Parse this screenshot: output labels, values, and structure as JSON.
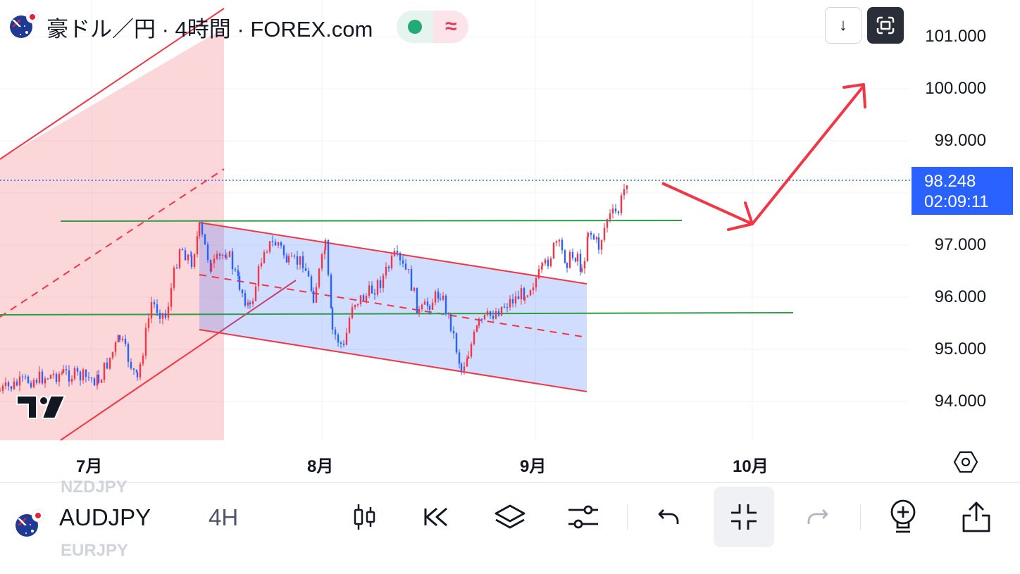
{
  "header": {
    "title": "豪ドル／円 · 4時間 · FOREX.com",
    "status_symbol": "≈"
  },
  "top_buttons": {
    "download_glyph": "↓"
  },
  "price_axis": {
    "labels": [
      "101.000",
      "100.000",
      "99.000",
      "97.000",
      "96.000",
      "95.000",
      "94.000"
    ],
    "current_price": "98.248",
    "countdown": "02:09:11"
  },
  "time_axis": {
    "labels": [
      "7月",
      "8月",
      "9月",
      "10月"
    ]
  },
  "toolbar": {
    "ghost_above": "NZDJPY",
    "symbol": "AUDJPY",
    "interval": "4H",
    "ghost_below": "EURJPY"
  },
  "colors": {
    "up": "#f23645",
    "down": "#2962ff",
    "channel_red": "rgba(242,54,69,0.2)",
    "channel_blue": "rgba(41,98,255,0.22)",
    "level_green": "#2e9e45",
    "arrow_red": "#f23645"
  }
}
